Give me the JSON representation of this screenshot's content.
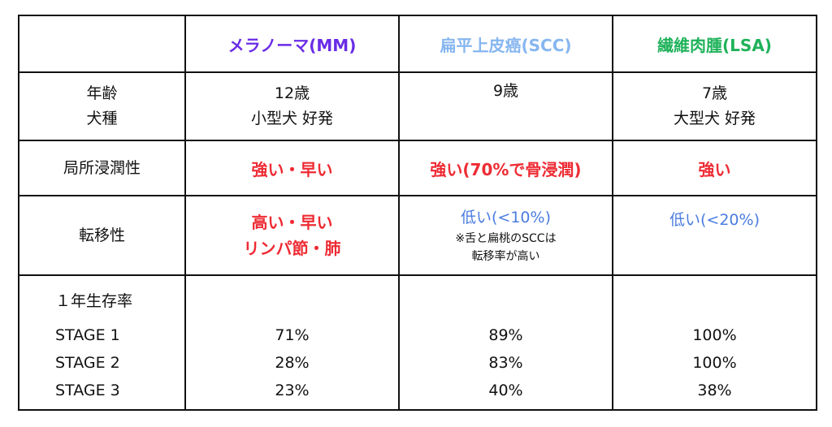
{
  "headers": {
    "mm": "メラノーマ(MM)",
    "scc": "扁平上皮癌(SCC)",
    "lsa": "繊維肉腫(LSA)"
  },
  "colors": {
    "mm": "#6a2ce6",
    "scc": "#86b6f0",
    "lsa": "#1fb25a",
    "red": "#ee2b34",
    "blue": "#4a7ce0"
  },
  "rows": {
    "age": {
      "label_1": "年齢",
      "label_2": "犬種",
      "mm_1": "12歳",
      "mm_2": "小型犬 好発",
      "scc_1": "9歳",
      "lsa_1": "7歳",
      "lsa_2": "大型犬 好発"
    },
    "invasion": {
      "label": "局所浸潤性",
      "mm": "強い・早い",
      "scc": "強い(70%で骨浸潤)",
      "lsa": "強い"
    },
    "metastasis": {
      "label": "転移性",
      "mm_1": "高い・早い",
      "mm_2": "リンパ節・肺",
      "scc_1": "低い(<10%)",
      "scc_note_1": "※舌と扁桃のSCCは",
      "scc_note_2": "転移率が高い",
      "lsa_1": "低い(<20%)"
    },
    "survival": {
      "label": "１年生存率",
      "stages": [
        "STAGE 1",
        "STAGE 2",
        "STAGE 3"
      ],
      "mm": [
        "71%",
        "28%",
        "23%"
      ],
      "scc": [
        "89%",
        "83%",
        "40%"
      ],
      "lsa": [
        "100%",
        "100%",
        "38%"
      ]
    }
  }
}
